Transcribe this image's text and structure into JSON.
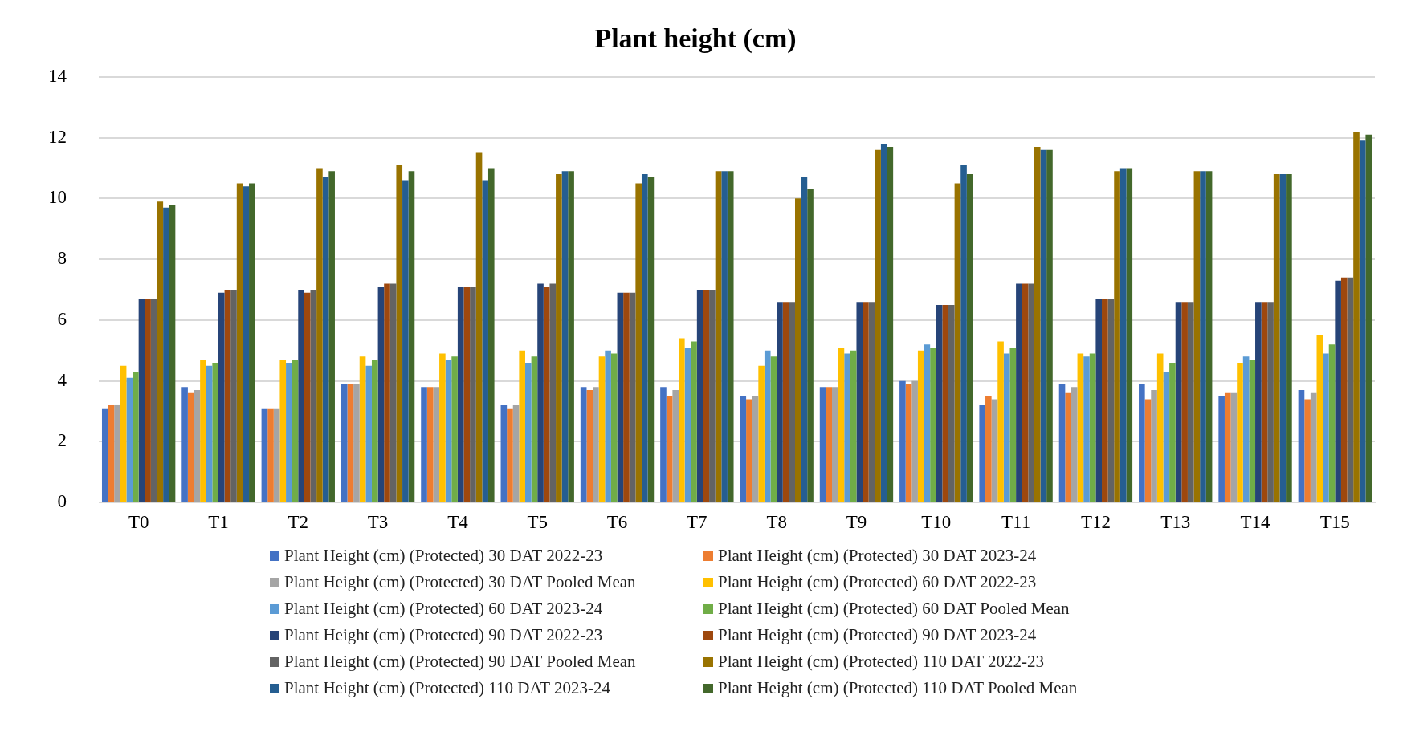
{
  "chart_data": {
    "type": "bar",
    "title": "Plant height (cm)",
    "categories": [
      "T0",
      "T1",
      "T2",
      "T3",
      "T4",
      "T5",
      "T6",
      "T7",
      "T8",
      "T9",
      "T10",
      "T11",
      "T12",
      "T13",
      "T14",
      "T15"
    ],
    "series": [
      {
        "name": "Plant Height (cm) (Protected) 30 DAT 2022-23",
        "color": "#4472c4",
        "values": [
          3.1,
          3.8,
          3.1,
          3.9,
          3.8,
          3.2,
          3.8,
          3.8,
          3.5,
          3.8,
          4.0,
          3.2,
          3.9,
          3.9,
          3.5,
          3.7
        ]
      },
      {
        "name": "Plant Height (cm) (Protected) 30 DAT 2023-24",
        "color": "#ed7d31",
        "values": [
          3.2,
          3.6,
          3.1,
          3.9,
          3.8,
          3.1,
          3.7,
          3.5,
          3.4,
          3.8,
          3.9,
          3.5,
          3.6,
          3.4,
          3.6,
          3.4
        ]
      },
      {
        "name": "Plant Height (cm) (Protected) 30 DAT Pooled Mean",
        "color": "#a5a5a5",
        "values": [
          3.2,
          3.7,
          3.1,
          3.9,
          3.8,
          3.2,
          3.8,
          3.7,
          3.5,
          3.8,
          4.0,
          3.4,
          3.8,
          3.7,
          3.6,
          3.6
        ]
      },
      {
        "name": "Plant Height (cm) (Protected) 60 DAT 2022-23",
        "color": "#ffc000",
        "values": [
          4.5,
          4.7,
          4.7,
          4.8,
          4.9,
          5.0,
          4.8,
          5.4,
          4.5,
          5.1,
          5.0,
          5.3,
          4.9,
          4.9,
          4.6,
          5.5
        ]
      },
      {
        "name": "Plant Height (cm) (Protected) 60 DAT 2023-24",
        "color": "#5b9bd5",
        "values": [
          4.1,
          4.5,
          4.6,
          4.5,
          4.7,
          4.6,
          5.0,
          5.1,
          5.0,
          4.9,
          5.2,
          4.9,
          4.8,
          4.3,
          4.8,
          4.9
        ]
      },
      {
        "name": "Plant Height (cm) (Protected) 60 DAT Pooled Mean",
        "color": "#70ad47",
        "values": [
          4.3,
          4.6,
          4.7,
          4.7,
          4.8,
          4.8,
          4.9,
          5.3,
          4.8,
          5.0,
          5.1,
          5.1,
          4.9,
          4.6,
          4.7,
          5.2
        ]
      },
      {
        "name": "Plant Height (cm) (Protected) 90 DAT 2022-23",
        "color": "#264478",
        "values": [
          6.7,
          6.9,
          7.0,
          7.1,
          7.1,
          7.2,
          6.9,
          7.0,
          6.6,
          6.6,
          6.5,
          7.2,
          6.7,
          6.6,
          6.6,
          7.3
        ]
      },
      {
        "name": "Plant Height (cm) (Protected) 90 DAT 2023-24",
        "color": "#9e480e",
        "values": [
          6.7,
          7.0,
          6.9,
          7.2,
          7.1,
          7.1,
          6.9,
          7.0,
          6.6,
          6.6,
          6.5,
          7.2,
          6.7,
          6.6,
          6.6,
          7.4
        ]
      },
      {
        "name": "Plant Height (cm) (Protected) 90 DAT Pooled Mean",
        "color": "#636363",
        "values": [
          6.7,
          7.0,
          7.0,
          7.2,
          7.1,
          7.2,
          6.9,
          7.0,
          6.6,
          6.6,
          6.5,
          7.2,
          6.7,
          6.6,
          6.6,
          7.4
        ]
      },
      {
        "name": "Plant Height (cm) (Protected) 110 DAT 2022-23",
        "color": "#997300",
        "values": [
          9.9,
          10.5,
          11.0,
          11.1,
          11.5,
          10.8,
          10.5,
          10.9,
          10.0,
          11.6,
          10.5,
          11.7,
          10.9,
          10.9,
          10.8,
          12.2
        ]
      },
      {
        "name": "Plant Height (cm) (Protected) 110 DAT 2023-24",
        "color": "#255e91",
        "values": [
          9.7,
          10.4,
          10.7,
          10.6,
          10.6,
          10.9,
          10.8,
          10.9,
          10.7,
          11.8,
          11.1,
          11.6,
          11.0,
          10.9,
          10.8,
          11.9
        ]
      },
      {
        "name": "Plant Height (cm) (Protected) 110 DAT Pooled Mean",
        "color": "#43682b",
        "values": [
          9.8,
          10.5,
          10.9,
          10.9,
          11.0,
          10.9,
          10.7,
          10.9,
          10.3,
          11.7,
          10.8,
          11.6,
          11.0,
          10.9,
          10.8,
          12.1
        ]
      }
    ],
    "ylim": [
      0,
      14
    ],
    "yticks": [
      0,
      2,
      4,
      6,
      8,
      10,
      12,
      14
    ],
    "grid": "y",
    "legend": "bottom"
  }
}
